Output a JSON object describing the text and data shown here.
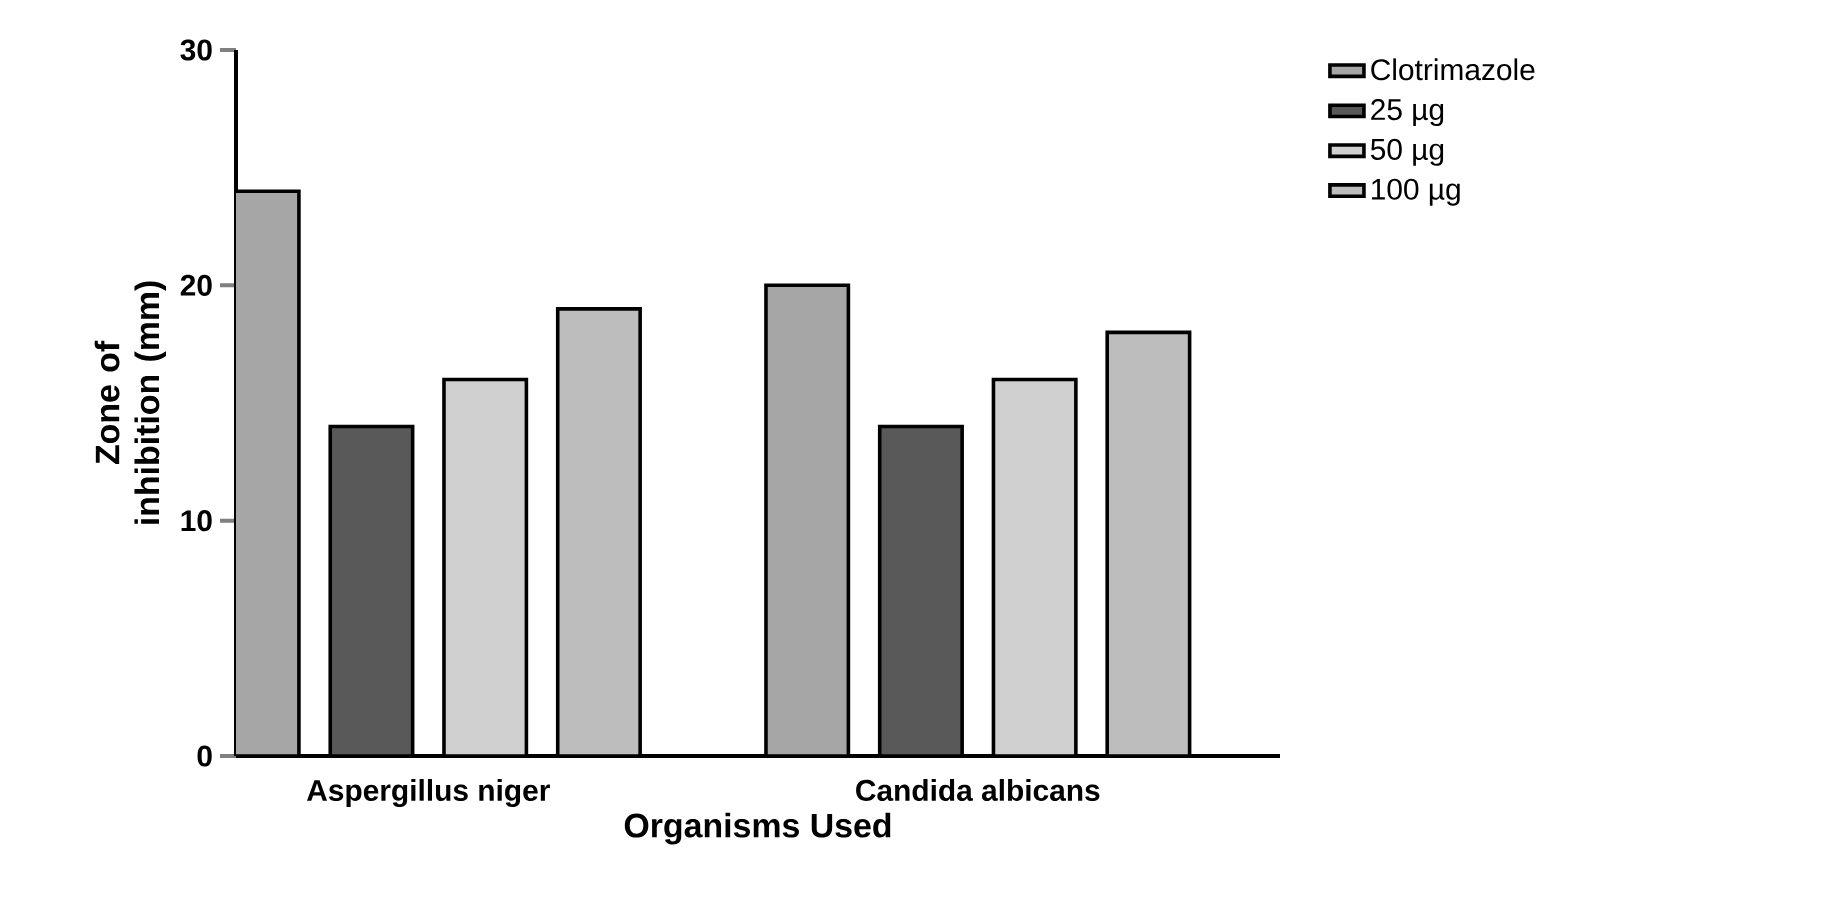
{
  "chart_data": {
    "type": "bar",
    "xlabel": "Organisms Used",
    "ylabel": "Zone of inhibition (mm)",
    "categories": [
      "Aspergillus niger",
      "Candida albicans"
    ],
    "series": [
      {
        "name": "Clotrimazole",
        "color": "#a6a6a6",
        "values": [
          24,
          20
        ]
      },
      {
        "name": "25 µg",
        "color": "#595959",
        "values": [
          14,
          14
        ]
      },
      {
        "name": "50 µg",
        "color": "#d0d0d0",
        "values": [
          16,
          16
        ]
      },
      {
        "name": "100 µg",
        "color": "#bdbdbd",
        "values": [
          19,
          18
        ]
      }
    ],
    "ylim": [
      0,
      30
    ],
    "yticks": [
      0,
      10,
      20,
      30
    ],
    "grid": false,
    "legend": "top right"
  }
}
